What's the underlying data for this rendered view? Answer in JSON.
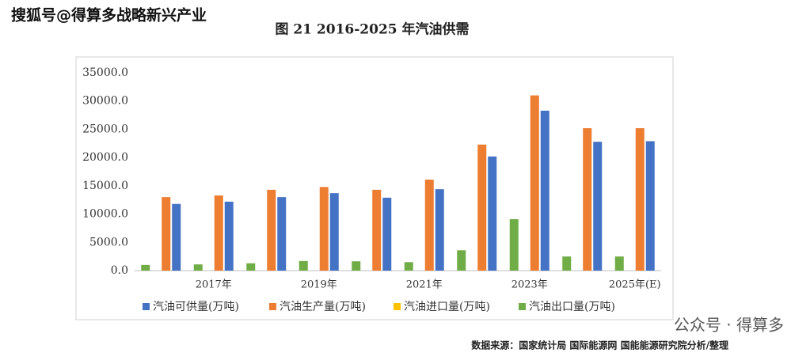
{
  "watermark_top": "搜狐号@得算多战略新兴产业",
  "watermark_bottom": "公众号 · 得算多",
  "source": "数据来源：国家统计局 国际能源网 国能能源研究院分析/整理",
  "chart_data": {
    "type": "bar",
    "title": "图 21 2016-2025 年汽油供需",
    "categories": [
      null,
      "2017年",
      null,
      "2019年",
      null,
      "2021年",
      null,
      "2023年",
      null,
      "2025年(E)"
    ],
    "series": [
      {
        "name": "汽油可供量(万吨)",
        "color": "#4472c4",
        "values": [
          11800,
          12200,
          13000,
          13700,
          12900,
          14400,
          20200,
          28300,
          22800,
          22900
        ]
      },
      {
        "name": "汽油生产量(万吨)",
        "color": "#ed7d31",
        "values": [
          13000,
          13300,
          14300,
          14800,
          14300,
          16100,
          22300,
          31000,
          25200,
          25200
        ]
      },
      {
        "name": "汽油进口量(万吨)",
        "color": "#ffc000",
        "values": [
          0,
          0,
          0,
          0,
          0,
          0,
          0,
          0,
          0,
          0
        ]
      },
      {
        "name": "汽油出口量(万吨)",
        "color": "#70ad47",
        "values": [
          1000,
          1100,
          1300,
          1700,
          1650,
          1500,
          3600,
          9100,
          2500,
          2500
        ]
      }
    ],
    "ylim": [
      0,
      35000
    ],
    "yticks": [
      {
        "value": 0,
        "label": "0.0"
      },
      {
        "value": 5000,
        "label": "5000.0"
      },
      {
        "value": 10000,
        "label": "10000.0"
      },
      {
        "value": 15000,
        "label": "15000.0"
      },
      {
        "value": 20000,
        "label": "20000.0"
      },
      {
        "value": 25000,
        "label": "25000.0"
      },
      {
        "value": 30000,
        "label": "30000.0"
      },
      {
        "value": 35000,
        "label": "35000.0"
      }
    ],
    "grid": false,
    "legend": "bottom"
  }
}
